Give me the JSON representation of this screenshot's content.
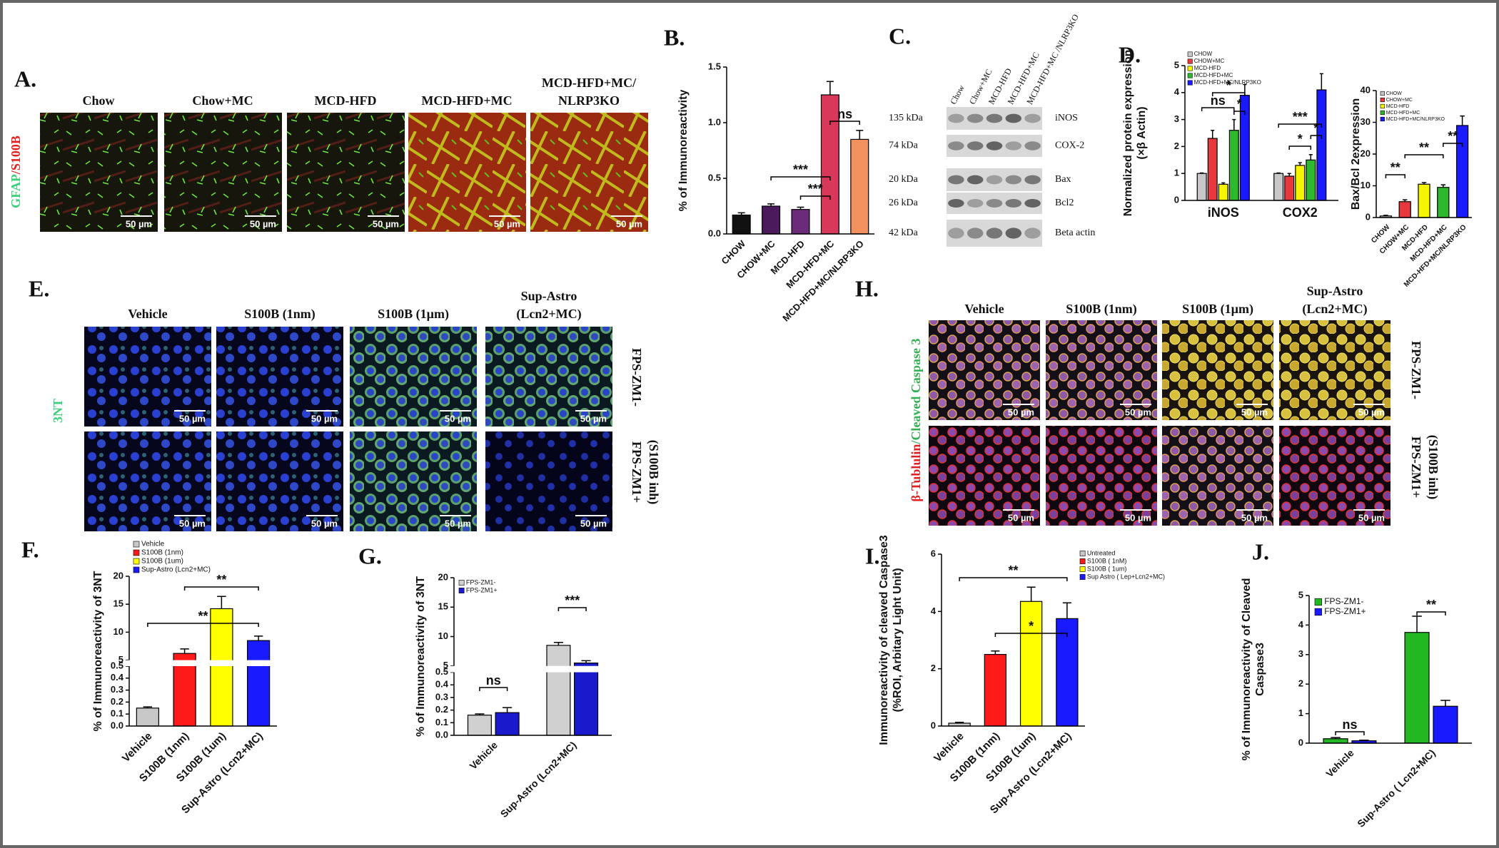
{
  "panels": {
    "A": {
      "label": "A.",
      "stain": [
        "GFAP",
        "/S100B"
      ],
      "columns": [
        [
          "Chow"
        ],
        [
          "Chow+MC"
        ],
        [
          "MCD-HFD"
        ],
        [
          "MCD-HFD+MC"
        ],
        [
          "MCD-HFD+MC/",
          "NLRP3KO"
        ]
      ],
      "scale_bar": "50 µm"
    },
    "C": {
      "label": "C.",
      "lanes": [
        "Chow",
        "Chow+MC",
        "MCD-HFD",
        "MCD-HFD+MC",
        "MCD-HFD+MC /NLRP3KO"
      ],
      "rows": [
        {
          "kda": "135 kDa",
          "protein": "iNOS"
        },
        {
          "kda": "74 kDa",
          "protein": "COX-2"
        },
        {
          "kda": "20 kDa",
          "protein": "Bax"
        },
        {
          "kda": "26 kDa",
          "protein": "Bcl2"
        },
        {
          "kda": "42 kDa",
          "protein": "Beta actin"
        }
      ]
    },
    "E": {
      "label": "E.",
      "stain": "3NT",
      "columns": [
        [
          "Vehicle"
        ],
        [
          "S100B (1nm)"
        ],
        [
          "S100B (1µm)"
        ],
        [
          "Sup-Astro",
          "(Lcn2+MC)"
        ]
      ],
      "rows": [
        [
          "FPS-ZM1-"
        ],
        [
          "FPS-ZM1+",
          "(S100B inh)"
        ]
      ],
      "scale_bar": "50 µm"
    },
    "H": {
      "label": "H.",
      "stain": [
        "β-Tublulin",
        "/Cleaved",
        " Caspase 3"
      ],
      "columns": [
        [
          "Vehicle"
        ],
        [
          "S100B (1nm)"
        ],
        [
          "S100B (1µm)"
        ],
        [
          "Sup-Astro",
          "(Lcn2+MC)"
        ]
      ],
      "rows": [
        [
          "FPS-ZM1-"
        ],
        [
          "FPS-ZM1+",
          "(S100B inh)"
        ]
      ],
      "scale_bar": "50 µm"
    }
  },
  "chart_data": [
    {
      "type": "bar",
      "panel": "B.",
      "y_label": [
        "% of Immunoreactivity"
      ],
      "categories": [
        "CHOW",
        "CHOW+MC",
        "MCD-HFD",
        "MCD-HFD+MC",
        "MCD-HFD+MC/NLRP3KO"
      ],
      "values": [
        0.17,
        0.25,
        0.22,
        1.25,
        0.85
      ],
      "errors": [
        0.02,
        0.02,
        0.02,
        0.12,
        0.08
      ],
      "colors": [
        "#111111",
        "#4a1a5c",
        "#6a2c7a",
        "#d8385a",
        "#f29060"
      ],
      "ylim": [
        0,
        1.5
      ],
      "yticks": [
        {
          "value": 0,
          "label": "0.0"
        },
        0.5,
        {
          "value": 1,
          "label": "1.0"
        },
        1.5
      ],
      "annotations": [
        "***",
        "***",
        "ns"
      ],
      "legend": false
    },
    {
      "type": "bar",
      "panel": "D.",
      "y_label": [
        "Normalized protein expression",
        "(×β Actin)"
      ],
      "categories": [
        "iNOS",
        "COX2"
      ],
      "series": [
        {
          "name": "CHOW",
          "color": "#c8c8c8",
          "values": [
            1,
            1
          ],
          "errors": [
            0.02,
            0.02
          ]
        },
        {
          "name": "CHOW+MC",
          "color": "#e8383d",
          "values": [
            2.3,
            0.9
          ],
          "errors": [
            0.3,
            0.1
          ]
        },
        {
          "name": "MCD-HFD",
          "color": "#f5f500",
          "values": [
            0.6,
            1.3
          ],
          "errors": [
            0.05,
            0.1
          ]
        },
        {
          "name": "MCD-HFD+MC",
          "color": "#2db82d",
          "values": [
            2.6,
            1.5
          ],
          "errors": [
            0.4,
            0.2
          ]
        },
        {
          "name": "MCD-HFD+MC/NLRP3KO",
          "color": "#1a1aff",
          "values": [
            3.9,
            4.1
          ],
          "errors": [
            0.4,
            0.6
          ]
        }
      ],
      "ylim": [
        0,
        5
      ],
      "yticks": [
        0,
        1,
        2,
        3,
        4,
        5
      ],
      "annotations": [
        "*",
        "ns",
        "*",
        "***",
        "*",
        "*"
      ],
      "legend": true
    },
    {
      "type": "bar",
      "y_label": [
        "Bax/Bcl 2expression"
      ],
      "categories": [
        "CHOW",
        "CHOW+MC",
        "MCD-HFD",
        "MCD-HFD+MC",
        "MCD-HFD+MC/NLRP3KO"
      ],
      "values": [
        0.5,
        5,
        10.5,
        9.5,
        29
      ],
      "errors": [
        0.2,
        0.6,
        0.5,
        0.8,
        3
      ],
      "colors": [
        "#c8c8c8",
        "#e8383d",
        "#f5f500",
        "#2db82d",
        "#1a1aff"
      ],
      "ylim": [
        0,
        40
      ],
      "yticks": [
        0,
        10,
        20,
        30,
        40
      ],
      "annotations": [
        "**",
        "**",
        "**"
      ],
      "legend": true
    },
    {
      "type": "bar",
      "panel": "F.",
      "y_label": [
        "% of Immunoreactivity of 3NT"
      ],
      "categories": [
        "Vehicle",
        "S100B (1nm)",
        "S100B (1um)",
        "Sup-Astro (Lcn2+MC)"
      ],
      "values": [
        0.15,
        6.2,
        14.2,
        8.5
      ],
      "errors": [
        0.01,
        0.8,
        2.2,
        0.8
      ],
      "colors": [
        "#c8c8c8",
        "#ff1a1a",
        "#ffff00",
        "#1a1aff"
      ],
      "ylim": [
        0,
        20
      ],
      "axis_break": [
        0.5,
        5
      ],
      "yticks": [
        {
          "value": 0,
          "label": "0.0"
        },
        0.1,
        0.2,
        0.3,
        0.4,
        0.5,
        5,
        10,
        15,
        20
      ],
      "annotations": [
        "**",
        "**"
      ],
      "legend": true
    },
    {
      "type": "bar",
      "panel": "G.",
      "y_label": [
        "% of Immunoreactivity of 3NT"
      ],
      "categories": [
        "Vehicle",
        "Sup-Astro (Lcn2+MC)"
      ],
      "series": [
        {
          "name": "FPS-ZM1-",
          "color": "#d0d0d0",
          "values": [
            0.16,
            8.5
          ],
          "errors": [
            0.01,
            0.5
          ]
        },
        {
          "name": "FPS-ZM1+",
          "color": "#1a1acc",
          "values": [
            0.18,
            5.5
          ],
          "errors": [
            0.04,
            0.4
          ]
        }
      ],
      "ylim": [
        0,
        20
      ],
      "axis_break": [
        0.5,
        5
      ],
      "yticks": [
        {
          "value": 0,
          "label": "0.0"
        },
        0.1,
        0.2,
        0.3,
        0.4,
        0.5,
        5,
        10,
        15,
        20
      ],
      "annotations": [
        "ns",
        "***"
      ],
      "legend": true
    },
    {
      "type": "bar",
      "panel": "I.",
      "y_label": [
        "Immunoreactivity of cleaved Caspase3",
        "(%ROI, Arbitary Light Unit)"
      ],
      "categories": [
        "Vehicle",
        "S100B (1nm)",
        "S100B (1um)",
        "Sup-Astro (Lcn2+MC)"
      ],
      "legend_labels": [
        "Untreated",
        "S100B ( 1nM)",
        "S100B ( 1um)",
        "Sup Astro ( Lep+Lcn2+MC)"
      ],
      "values": [
        0.1,
        2.5,
        4.35,
        3.75
      ],
      "errors": [
        0.03,
        0.12,
        0.5,
        0.55
      ],
      "colors": [
        "#c8c8c8",
        "#ff1a1a",
        "#ffff00",
        "#1a1aff"
      ],
      "ylim": [
        0,
        6
      ],
      "yticks": [
        0,
        2,
        4,
        6
      ],
      "annotations": [
        "**",
        "*"
      ],
      "legend": true
    },
    {
      "type": "bar",
      "panel": "J.",
      "y_label": [
        "% of Immunoreactivity of Cleaved",
        "Caspase3"
      ],
      "categories": [
        "Vehicle",
        "Sup-Astro ( Lcn2+MC)"
      ],
      "series": [
        {
          "name": "FPS-ZM1-",
          "color": "#22b822",
          "values": [
            0.15,
            3.75
          ],
          "errors": [
            0.04,
            0.55
          ]
        },
        {
          "name": "FPS-ZM1+",
          "color": "#1a1aff",
          "values": [
            0.08,
            1.25
          ],
          "errors": [
            0.02,
            0.2
          ]
        }
      ],
      "ylim": [
        0,
        5
      ],
      "yticks": [
        0,
        1,
        2,
        3,
        4,
        5
      ],
      "annotations": [
        "ns",
        "**"
      ],
      "legend": true
    }
  ]
}
